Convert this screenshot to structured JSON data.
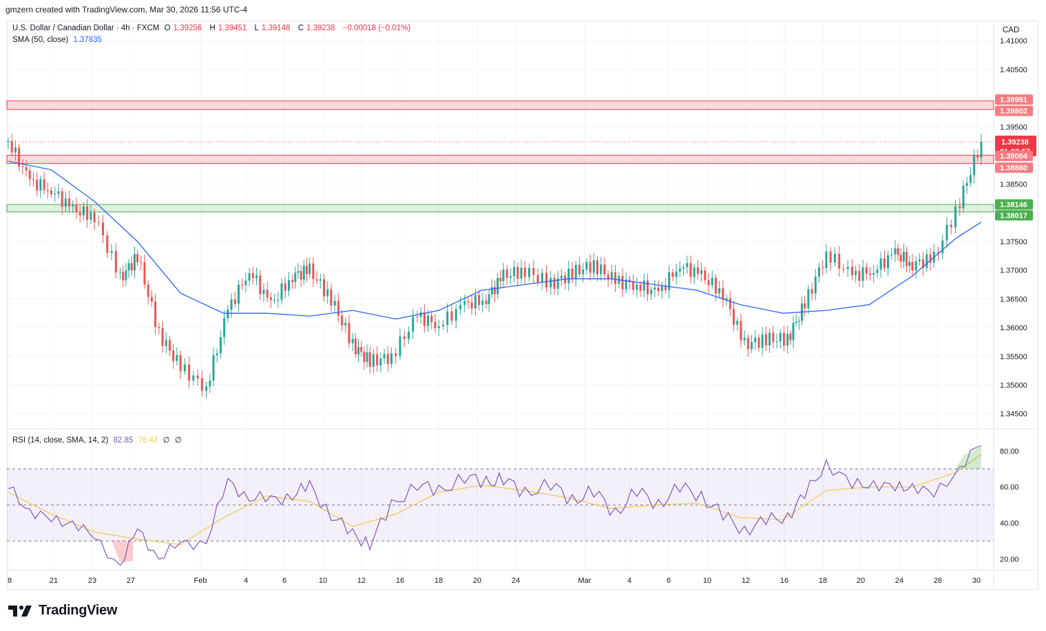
{
  "caption": "gmzern created with TradingView.com, Mar 30, 2026 11:56 UTC-4",
  "symbol": {
    "name": "U.S. Dollar / Canadian Dollar · 4h · FXCM",
    "open_label": "O",
    "open": "1.39256",
    "high_label": "H",
    "high": "1.39451",
    "low_label": "L",
    "low": "1.39148",
    "close_label": "C",
    "close": "1.39238",
    "change": "−0.00018 (−0.01%)"
  },
  "sma_legend": {
    "label": "SMA (50, close)",
    "value": "1.37835"
  },
  "rsi_legend": {
    "label": "RSI (14, close, SMA, 14, 2)",
    "rsi": "82.85",
    "signal": "78.42",
    "extra1": "∅",
    "extra2": "∅"
  },
  "currency": "CAD",
  "price_axis": [
    "1.41000",
    "1.40500",
    "1.39500",
    "1.38500",
    "1.37500",
    "1.37000",
    "1.36500",
    "1.36000",
    "1.35500",
    "1.35000",
    "1.34500"
  ],
  "rsi_axis": [
    "80.00",
    "60.00",
    "40.00",
    "20.00"
  ],
  "time_axis": [
    "8",
    "21",
    "23",
    "27",
    "Feb",
    "4",
    "6",
    "10",
    "12",
    "16",
    "18",
    "20",
    "24",
    "Mar",
    "4",
    "6",
    "10",
    "12",
    "16",
    "18",
    "20",
    "24",
    "26",
    "30"
  ],
  "price_tags": {
    "zone1_top": "1.39951",
    "zone1_bottom": "1.39802",
    "last_price": "1.39238",
    "countdown": "01:03:57",
    "zone2_top": "1.39004",
    "zone2_bottom": "1.38860",
    "zone3_top": "1.38146",
    "zone3_bottom": "1.38017"
  },
  "colors": {
    "up": "#26a69a",
    "down": "#ef5350",
    "sma": "#2962ff",
    "rsi": "#7e57c2",
    "rsi_ma": "#f2c94c",
    "resistance": "#f23645",
    "support": "#4caf50"
  },
  "chart_data": [
    {
      "type": "line",
      "title": "U.S. Dollar / Canadian Dollar · 4h · FXCM",
      "ylim": [
        1.3425,
        1.4135
      ],
      "series": [
        {
          "name": "Price (close)",
          "x": [
            0,
            10,
            20,
            30,
            40,
            52,
            60,
            70,
            80,
            92,
            102,
            112,
            122,
            132,
            140,
            150,
            160,
            168,
            178,
            190,
            200,
            212,
            222,
            230,
            240,
            252,
            262,
            272,
            282,
            292,
            302,
            312,
            322,
            332,
            342,
            352,
            362,
            370,
            380,
            392,
            402,
            412,
            420,
            430,
            442,
            452
          ],
          "values": [
            1.3925,
            1.3855,
            1.384,
            1.3805,
            1.3795,
            1.3685,
            1.3725,
            1.359,
            1.353,
            1.3495,
            1.363,
            1.37,
            1.364,
            1.369,
            1.37,
            1.365,
            1.357,
            1.354,
            1.355,
            1.362,
            1.3605,
            1.364,
            1.365,
            1.369,
            1.37,
            1.3675,
            1.3695,
            1.371,
            1.368,
            1.3675,
            1.366,
            1.371,
            1.369,
            1.366,
            1.357,
            1.358,
            1.358,
            1.364,
            1.373,
            1.369,
            1.37,
            1.373,
            1.371,
            1.372,
            1.382,
            1.3924
          ]
        },
        {
          "name": "SMA (50, close)",
          "x": [
            0,
            20,
            40,
            60,
            80,
            100,
            120,
            140,
            160,
            180,
            200,
            220,
            240,
            260,
            280,
            300,
            320,
            340,
            360,
            380,
            400,
            420,
            440,
            452
          ],
          "values": [
            1.389,
            1.3875,
            1.382,
            1.375,
            1.366,
            1.3625,
            1.3625,
            1.362,
            1.363,
            1.3615,
            1.363,
            1.3665,
            1.3675,
            1.3685,
            1.3685,
            1.3675,
            1.3665,
            1.364,
            1.3625,
            1.363,
            1.364,
            1.369,
            1.3755,
            1.3784
          ]
        }
      ],
      "zones": [
        {
          "top": 1.39951,
          "bottom": 1.39802,
          "kind": "resistance"
        },
        {
          "top": 1.39004,
          "bottom": 1.3886,
          "kind": "resistance"
        },
        {
          "top": 1.38146,
          "bottom": 1.38017,
          "kind": "support"
        }
      ]
    },
    {
      "type": "line",
      "title": "RSI (14, close, SMA, 14, 2)",
      "ylim": [
        14,
        92
      ],
      "bands": [
        30,
        50,
        70
      ],
      "series": [
        {
          "name": "RSI",
          "x": [
            0,
            10,
            20,
            30,
            40,
            52,
            60,
            70,
            80,
            92,
            102,
            112,
            122,
            132,
            140,
            150,
            160,
            168,
            178,
            190,
            200,
            212,
            222,
            230,
            240,
            252,
            262,
            272,
            282,
            292,
            302,
            312,
            322,
            332,
            342,
            352,
            362,
            370,
            380,
            392,
            402,
            412,
            420,
            430,
            442,
            452
          ],
          "values": [
            59,
            48,
            40,
            42,
            30,
            18,
            35,
            22,
            27,
            31,
            62,
            55,
            52,
            56,
            60,
            45,
            33,
            29,
            49,
            62,
            57,
            66,
            62,
            65,
            56,
            62,
            52,
            58,
            45,
            58,
            50,
            60,
            55,
            44,
            36,
            41,
            44,
            55,
            74,
            60,
            63,
            58,
            62,
            54,
            72,
            83
          ]
        },
        {
          "name": "RSI-based MA",
          "x": [
            0,
            20,
            40,
            60,
            80,
            100,
            120,
            140,
            160,
            180,
            200,
            220,
            240,
            260,
            280,
            300,
            320,
            340,
            360,
            380,
            400,
            420,
            440,
            452
          ],
          "values": [
            57,
            45,
            35,
            31,
            28,
            43,
            55,
            52,
            38,
            45,
            57,
            61,
            58,
            54,
            48,
            50,
            51,
            43,
            42,
            58,
            60,
            60,
            68,
            78
          ]
        }
      ]
    }
  ]
}
